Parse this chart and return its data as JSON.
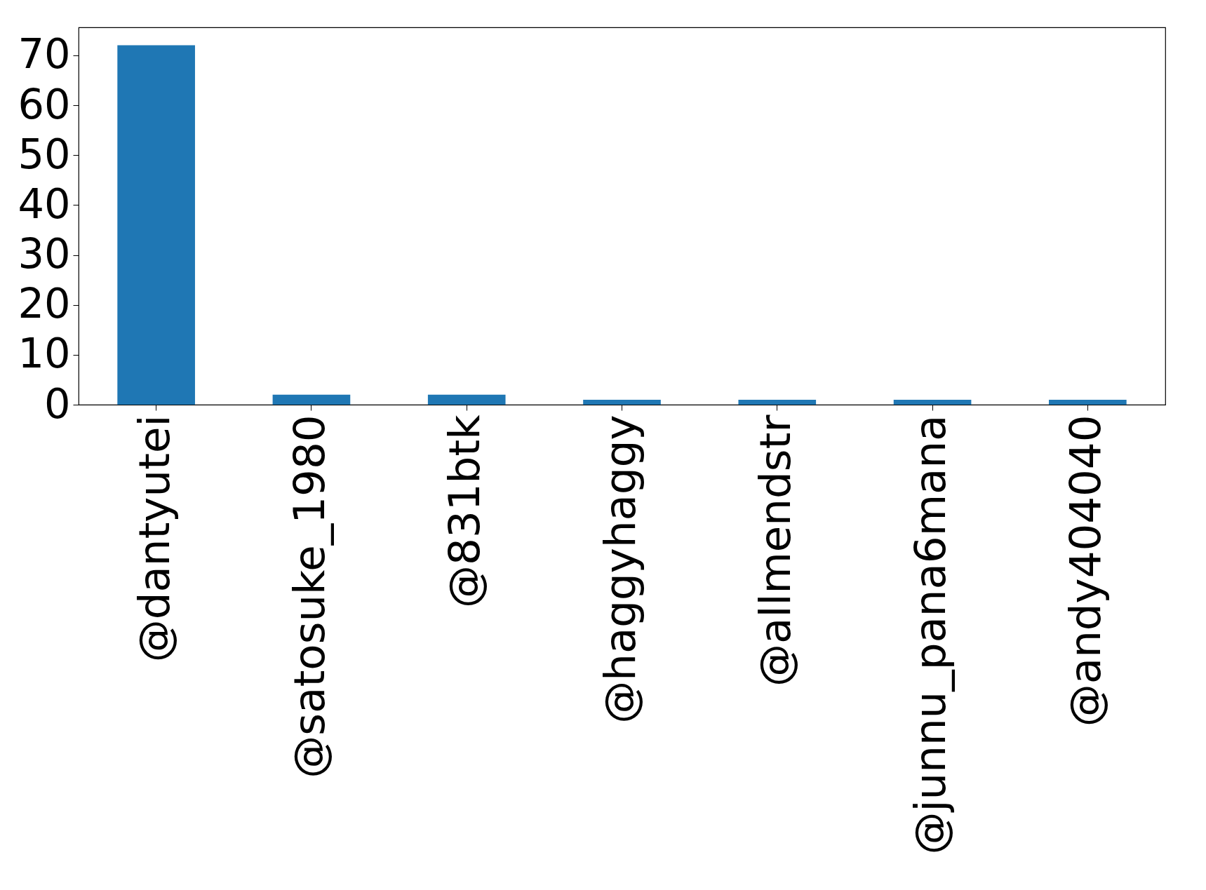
{
  "chart_data": {
    "type": "bar",
    "categories": [
      "@dantyutei",
      "@satosuke_1980",
      "@831btk",
      "@haggyhaggy",
      "@allmendstr",
      "@junnu_pana6mana",
      "@andy404040"
    ],
    "values": [
      72,
      2,
      2,
      1,
      1,
      1,
      1
    ],
    "color": "#1f77b4",
    "ylim": [
      0,
      75.6
    ],
    "yticks": [
      0,
      10,
      20,
      30,
      40,
      50,
      60,
      70
    ],
    "grid": false
  }
}
